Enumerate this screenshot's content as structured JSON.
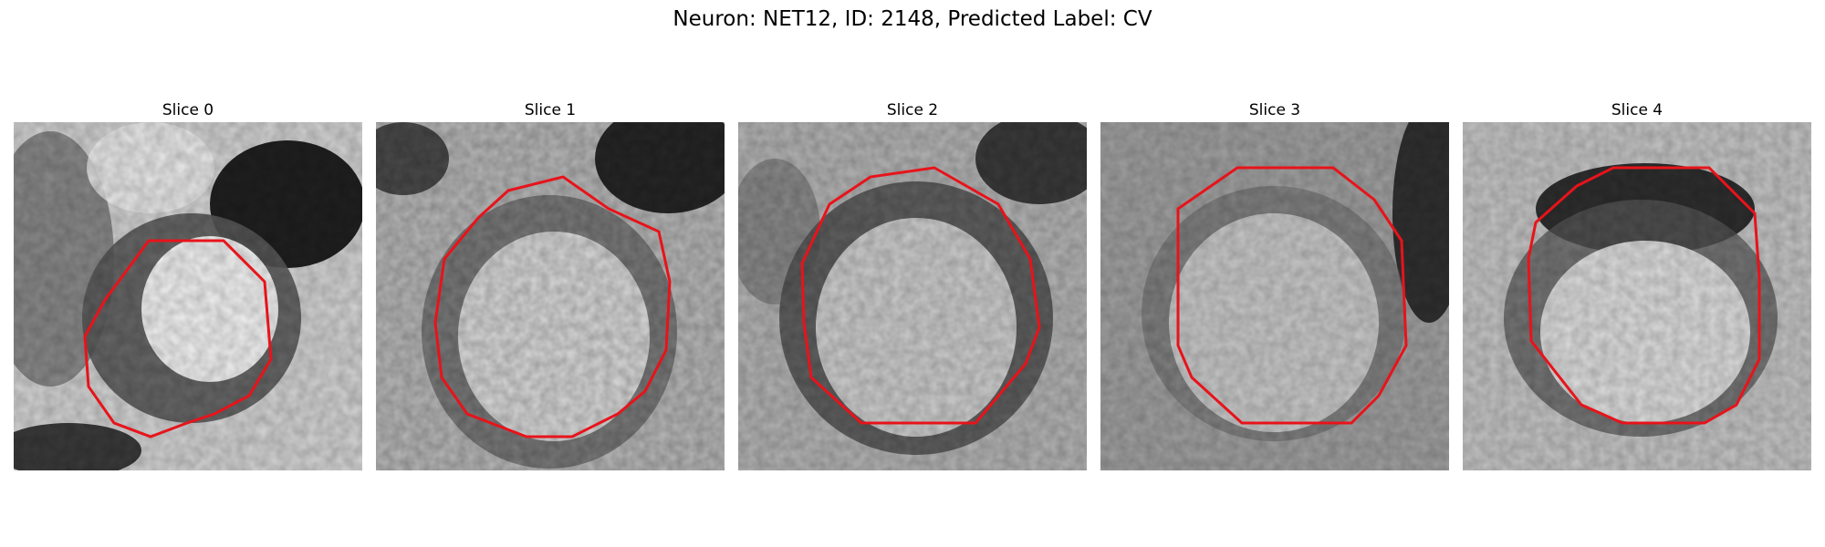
{
  "figure": {
    "title": "Neuron: NET12, ID: 2148, Predicted Label: CV"
  },
  "panels": [
    {
      "title": "Slice 0"
    },
    {
      "title": "Slice 1"
    },
    {
      "title": "Slice 2"
    },
    {
      "title": "Slice 3"
    },
    {
      "title": "Slice 4"
    }
  ],
  "colors": {
    "contour": "#e8131a"
  }
}
